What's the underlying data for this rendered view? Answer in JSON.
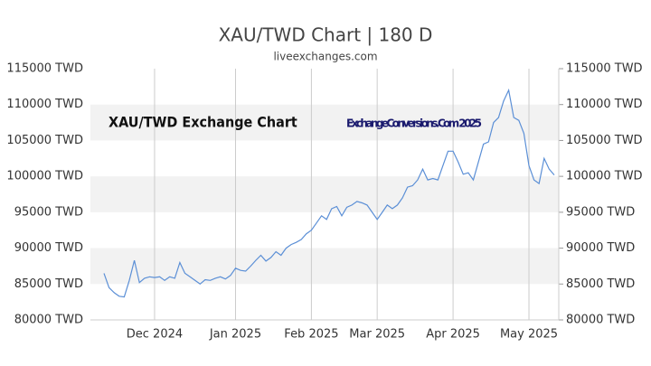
{
  "chart_data": {
    "type": "line",
    "title": "XAU/TWD Chart | 180 D",
    "subtitle": "liveexchanges.com",
    "annotations": [
      "XAU/TWD Exchange Chart",
      "ExchangeConversions.Com 2025"
    ],
    "categories": [
      null,
      null,
      null,
      null,
      null,
      null,
      null,
      null,
      null,
      null,
      "Dec 2024",
      null,
      null,
      null,
      null,
      null,
      null,
      null,
      null,
      null,
      null,
      null,
      null,
      null,
      null,
      null,
      "Jan 2025",
      null,
      null,
      null,
      null,
      null,
      null,
      null,
      null,
      null,
      null,
      null,
      null,
      null,
      null,
      "Feb 2025",
      null,
      null,
      null,
      null,
      null,
      null,
      null,
      null,
      null,
      null,
      null,
      null,
      "Mar 2025",
      null,
      null,
      null,
      null,
      null,
      null,
      null,
      null,
      null,
      null,
      null,
      null,
      null,
      null,
      "Apr 2025",
      null,
      null,
      null,
      null,
      null,
      null,
      null,
      null,
      null,
      null,
      null,
      null,
      null,
      null,
      "May 2025",
      null,
      null,
      null,
      null,
      null
    ],
    "values": [
      86500,
      84500,
      83800,
      83300,
      83200,
      85500,
      88300,
      85200,
      85800,
      86000,
      85900,
      86000,
      85500,
      86000,
      85800,
      88000,
      86500,
      86000,
      85500,
      85000,
      85600,
      85500,
      85800,
      86000,
      85700,
      86200,
      87200,
      86900,
      86800,
      87500,
      88300,
      89000,
      88200,
      88700,
      89500,
      89000,
      90000,
      90500,
      90800,
      91200,
      92000,
      92500,
      93500,
      94500,
      94000,
      95500,
      95800,
      94500,
      95700,
      96000,
      96500,
      96300,
      96000,
      95000,
      94000,
      95000,
      96000,
      95500,
      96000,
      97000,
      98500,
      98700,
      99500,
      101000,
      99500,
      99700,
      99500,
      101500,
      103500,
      103500,
      102000,
      100300,
      100500,
      99500,
      102000,
      104500,
      104800,
      107500,
      108200,
      110500,
      112000,
      108200,
      107800,
      106000,
      101500,
      99500,
      99000,
      102500,
      101000,
      100200
    ],
    "color": "#5b8fd6",
    "ylim": [
      80000,
      115000
    ],
    "yticks": [
      {
        "value": 80000,
        "label": "80000 TWD"
      },
      {
        "value": 85000,
        "label": "85000 TWD"
      },
      {
        "value": 90000,
        "label": "90000 TWD"
      },
      {
        "value": 95000,
        "label": "95000 TWD"
      },
      {
        "value": 100000,
        "label": "100000 TWD"
      },
      {
        "value": 105000,
        "label": "105000 TWD"
      },
      {
        "value": 110000,
        "label": "110000 TWD"
      },
      {
        "value": 115000,
        "label": "115000 TWD"
      }
    ],
    "grid": true
  }
}
